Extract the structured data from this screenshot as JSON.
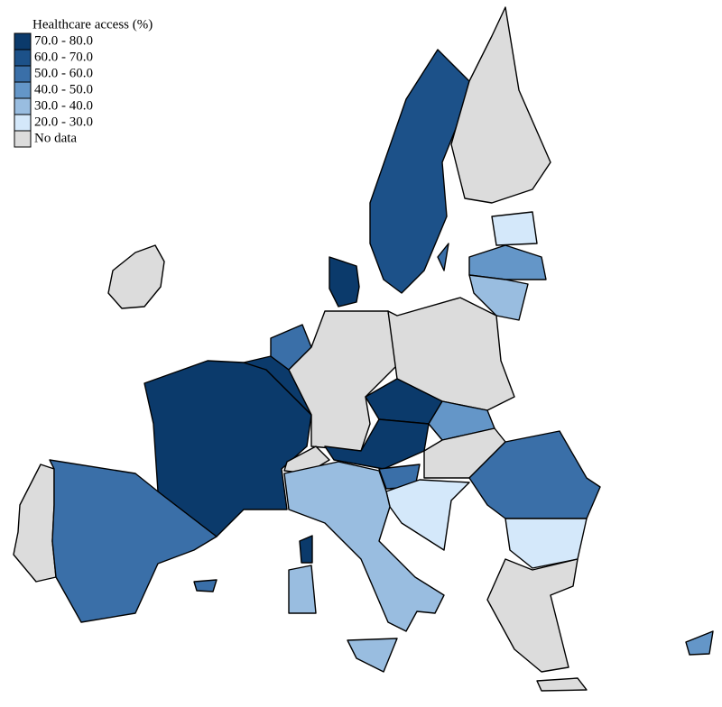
{
  "legend": {
    "title": "Healthcare access (%)",
    "items": [
      {
        "label": "70.0 - 80.0",
        "color": "#0b3a6b"
      },
      {
        "label": "60.0 - 70.0",
        "color": "#1c5189"
      },
      {
        "label": "50.0 - 60.0",
        "color": "#3a6fa8"
      },
      {
        "label": "40.0 - 50.0",
        "color": "#6496c8"
      },
      {
        "label": "30.0 - 40.0",
        "color": "#99bde0"
      },
      {
        "label": "20.0 - 30.0",
        "color": "#d4e8fa"
      },
      {
        "label": "No data",
        "color": "#dcdcdc"
      }
    ]
  }
}
